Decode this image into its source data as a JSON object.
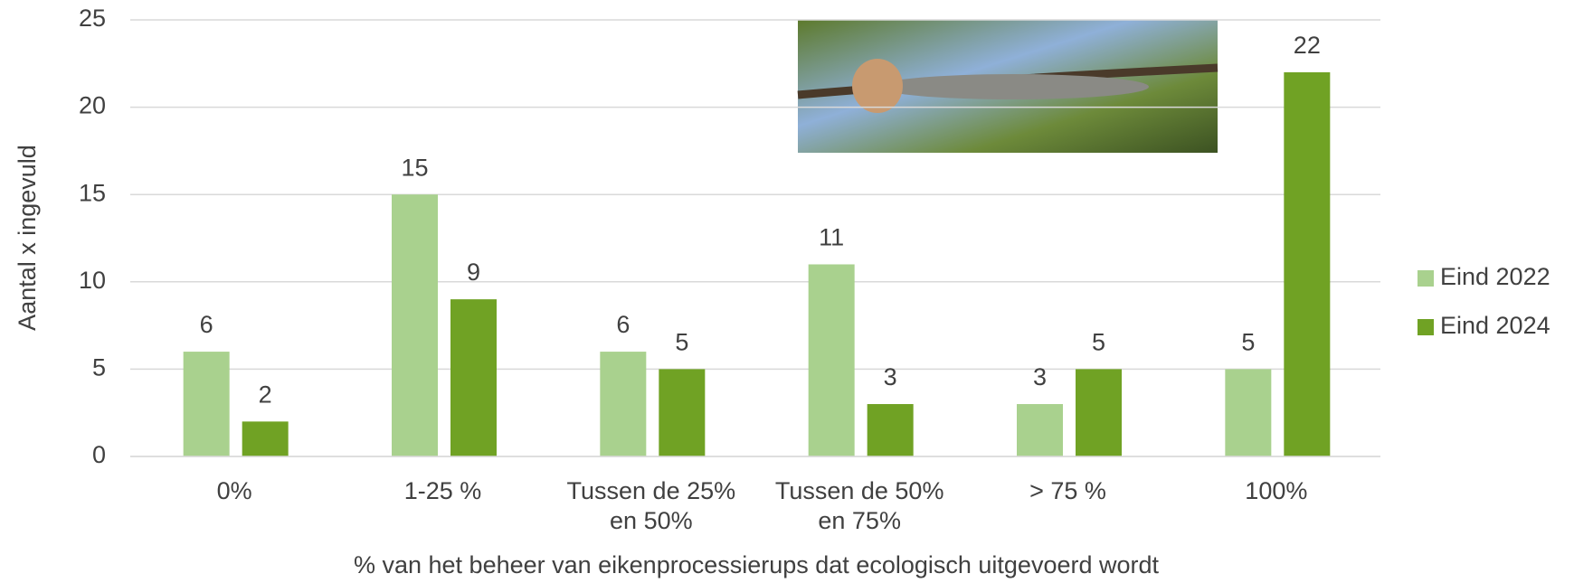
{
  "chart_data": {
    "type": "bar",
    "categories": [
      "0%",
      "1-25 %",
      "Tussen de 25% en 50%",
      "Tussen de 50% en 75%",
      "> 75 %",
      "100%"
    ],
    "series": [
      {
        "name": "Eind 2022",
        "color": "#a9d18e",
        "values": [
          6,
          15,
          6,
          11,
          3,
          5
        ]
      },
      {
        "name": "Eind 2024",
        "color": "#70a224",
        "values": [
          2,
          9,
          5,
          3,
          5,
          22
        ]
      }
    ],
    "ylabel": "Aantal x ingevuld",
    "xlabel": "% van het beheer van eikenprocessierups dat ecologisch uitgevoerd wordt",
    "ylim": [
      0,
      25
    ],
    "yticks": [
      0,
      5,
      10,
      15,
      20,
      25
    ],
    "grid": true,
    "legend": "right"
  }
}
